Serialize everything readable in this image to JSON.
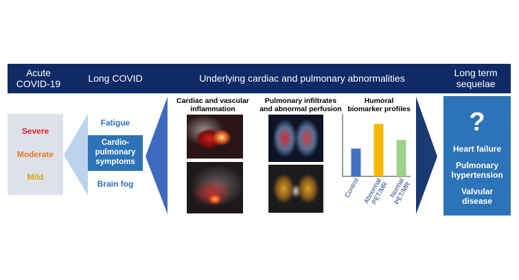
{
  "banner": {
    "acute": "Acute\nCOVID-19",
    "long_covid": "Long COVID",
    "underlying": "Underlying cardiac and pulmonary abnormalities",
    "long_term": "Long term\nsequelae"
  },
  "severity": {
    "severe": "Severe",
    "moderate": "Moderate",
    "mild": "Mild",
    "colors": {
      "severe": "#e3202a",
      "moderate": "#e27b24",
      "mild": "#d8a80b"
    }
  },
  "symptoms": {
    "fatigue": "Fatigue",
    "cardiopulmonary": "Cardio-\npulmonary\nsymptoms",
    "brain_fog": "Brain fog"
  },
  "panels": {
    "cardiac_title": "Cardiac and vascular\ninflammation",
    "pulmonary_title": "Pulmonary infiltrates\nand abnormal perfusion",
    "humoral_title": "Humoral\nbiomarker profiles"
  },
  "chart_data": {
    "type": "bar",
    "categories": [
      "Control",
      "Abnormal\nPET/MR",
      "Normal\nPET/MR"
    ],
    "values": [
      0.45,
      0.85,
      0.59
    ],
    "colors": [
      "#4472c4",
      "#f5b800",
      "#9fd08c"
    ]
  },
  "sequelae": {
    "question_mark": "?",
    "items": [
      "Heart failure",
      "Pulmonary\nhypertension",
      "Valvular\ndisease"
    ]
  }
}
